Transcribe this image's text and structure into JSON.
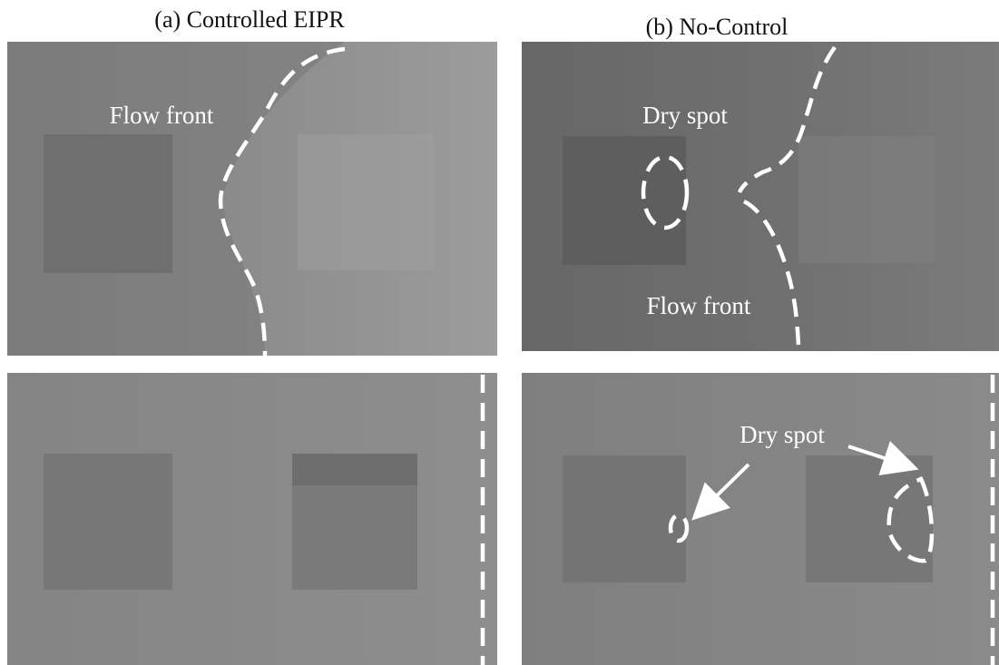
{
  "titles": [
    "(a) Controlled EIPR",
    "(b) No-Control"
  ],
  "panels": {
    "top_left": {
      "flow_front_label": "Flow front"
    },
    "top_right": {
      "dry_spot_label": "Dry spot",
      "flow_front_label": "Flow front"
    },
    "bottom_right": {
      "dry_spot_label": "Dry spot"
    }
  }
}
